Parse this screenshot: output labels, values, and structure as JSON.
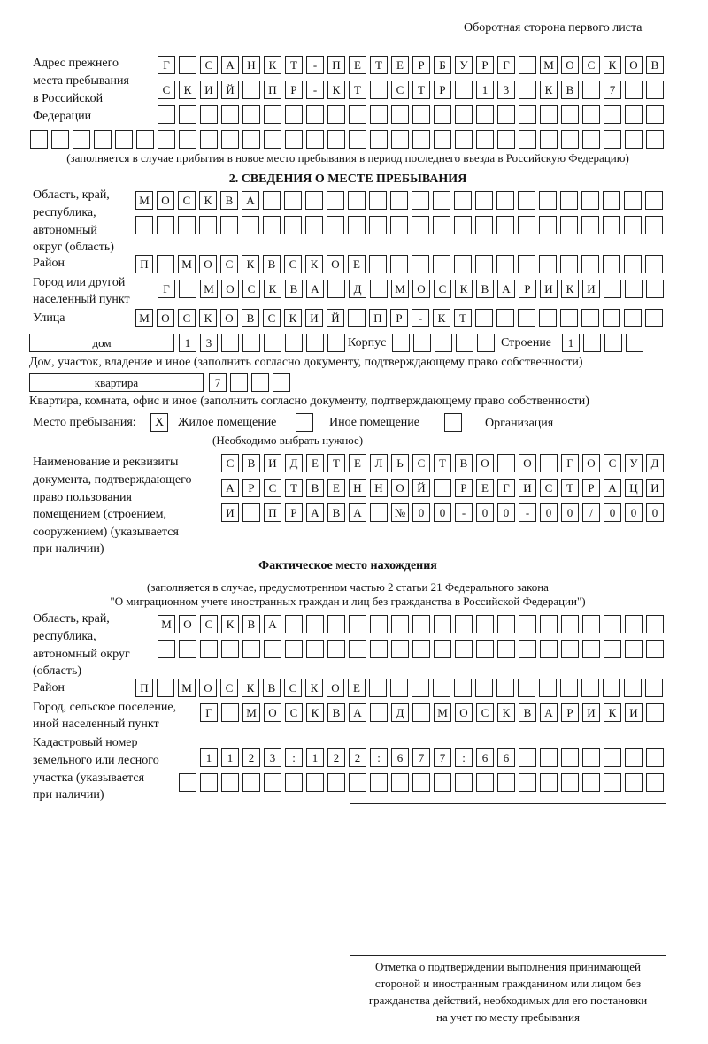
{
  "header": "Оборотная сторона первого листа",
  "prev_address": {
    "label": [
      "Адрес прежнего",
      "места пребывания",
      "в Российской",
      "Федерации"
    ],
    "rows": [
      "Г САНКТ-ПЕТЕРБУРГ МОСКОВ",
      "СКИЙ ПР-КТ СТР 13 КВ 7",
      "",
      ""
    ],
    "note": "(заполняется в случае прибытия в новое место пребывания в период последнего въезда в Российскую Федерацию)"
  },
  "section2": {
    "title": "2. СВЕДЕНИЯ О МЕСТЕ ПРЕБЫВАНИЯ",
    "region_label": [
      "Область, край,",
      "республика,",
      "автономный",
      "округ (область)"
    ],
    "region_rows": [
      "МОСКВА",
      ""
    ],
    "district_label": "Район",
    "district": "П МОСКВСКОЕ",
    "city_label": [
      "Город или другой",
      "населенный пункт"
    ],
    "city": "Г МОСКВА Д МОСКВАРИКИ",
    "street_label": "Улица",
    "street": "МОСКОВСКИЙ ПР-КТ",
    "house_type": "дом",
    "house": "13",
    "korpus_label": "Корпус",
    "korpus": "",
    "building_label": "Строение",
    "building": "1",
    "house_note": "Дом, участок, владение и иное (заполнить согласно документу, подтверждающему право собственности)",
    "flat_type": "квартира",
    "flat": "7",
    "flat_note": "Квартира, комната, офис и иное (заполнить согласно документу, подтверждающему право собственности)",
    "stay_label": "Место пребывания:",
    "stay_options": [
      {
        "label": "Жилое помещение",
        "mark": "Х"
      },
      {
        "label": "Иное помещение",
        "mark": ""
      },
      {
        "label": "Организация",
        "mark": ""
      }
    ],
    "stay_note": "(Необходимо выбрать нужное)",
    "doc_label": [
      "Наименование и реквизиты",
      "документа, подтверждающего",
      "право пользования",
      "помещением (строением,",
      "сооружением) (указывается",
      "при наличии)"
    ],
    "doc_rows": [
      "СВИДЕТЕЛЬСТВО О ГОСУД",
      "АРСТВЕННОЙ РЕГИСТРАЦИ",
      "И ПРАВА №00-00-00/000"
    ]
  },
  "actual": {
    "title": "Фактическое место нахождения",
    "note1": "(заполняется в случае, предусмотренном частью 2 статьи 21 Федерального закона",
    "note2": "\"О миграционном учете иностранных граждан и лиц без гражданства в Российской Федерации\")",
    "region_label": [
      "Область, край,",
      "республика,",
      "автономный округ",
      "(область)"
    ],
    "region_rows": [
      "МОСКВА",
      ""
    ],
    "district_label": "Район",
    "district": "П МОСКВСКОЕ",
    "city_label": [
      "Город, сельское поселение,",
      "иной населенный пункт"
    ],
    "city": "Г МОСКВА Д МОСКВАРИКИ",
    "cadastre_label": [
      "Кадастровый номер",
      "земельного или лесного",
      "участка (указывается",
      "при наличии)"
    ],
    "cadastre_rows": [
      "1123:122:677:66",
      ""
    ]
  },
  "stamp_caption": [
    "Отметка о подтверждении выполнения принимающей",
    "стороной и иностранным гражданином или лицом без",
    "гражданства действий, необходимых для его постановки",
    "на учет по месту пребывания"
  ]
}
